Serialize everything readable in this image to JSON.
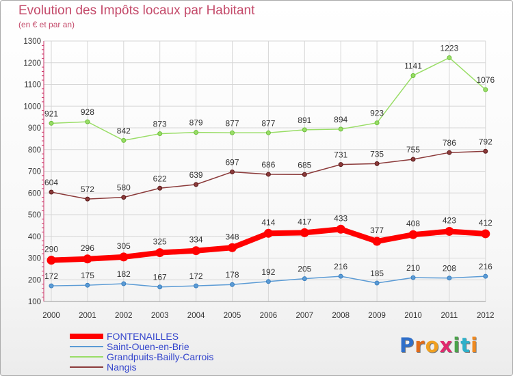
{
  "title": "Evolution des Impôts locaux par Habitant",
  "subtitle": "(en € et par an)",
  "brand": {
    "letters": [
      "P",
      "r",
      "o",
      "x",
      "i",
      "t",
      "i"
    ],
    "colors": [
      "#2f6fc9",
      "#e06b1a",
      "#f0a020",
      "#e02a6e",
      "#4ba34b",
      "#2fb0c9",
      "#f08a20"
    ]
  },
  "chart_data": {
    "type": "line",
    "x": [
      "2000",
      "2001",
      "2002",
      "2003",
      "2004",
      "2005",
      "2006",
      "2007",
      "2008",
      "2009",
      "2010",
      "2011",
      "2012"
    ],
    "ylim": [
      100,
      1300
    ],
    "yticks": [
      "100",
      "200",
      "300",
      "400",
      "500",
      "600",
      "700",
      "800",
      "900",
      "1000",
      "1100",
      "1200",
      "1300"
    ],
    "grid": true,
    "legend_position": "bottom-left",
    "series": [
      {
        "name": "FONTENAILLES",
        "color": "#ff0000",
        "values": [
          290,
          296,
          305,
          325,
          334,
          348,
          414,
          417,
          433,
          377,
          408,
          423,
          412
        ]
      },
      {
        "name": "Saint-Ouen-en-Brie",
        "color": "#5b9bd5",
        "values": [
          172,
          175,
          182,
          167,
          172,
          178,
          192,
          205,
          216,
          185,
          210,
          208,
          216
        ]
      },
      {
        "name": "Grandpuits-Bailly-Carrois",
        "color": "#99dd66",
        "values": [
          921,
          928,
          842,
          873,
          879,
          877,
          877,
          891,
          894,
          923,
          1141,
          1223,
          1076
        ]
      },
      {
        "name": "Nangis",
        "color": "#8b3a3a",
        "values": [
          604,
          572,
          580,
          622,
          639,
          697,
          686,
          685,
          731,
          735,
          755,
          786,
          792
        ]
      }
    ]
  }
}
